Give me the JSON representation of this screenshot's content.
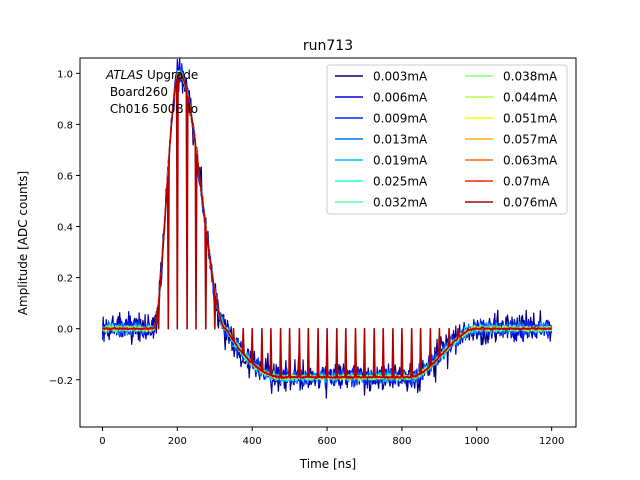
{
  "chart_data": {
    "type": "line",
    "title": "run713",
    "xlabel": "Time [ns]",
    "ylabel": "Amplitude [ADC counts]",
    "xlim": [
      -60,
      1265
    ],
    "ylim": [
      -0.385,
      1.06
    ],
    "xticks": [
      0,
      200,
      400,
      600,
      800,
      1000,
      1200
    ],
    "yticks": [
      -0.2,
      0.0,
      0.2,
      0.4,
      0.6,
      0.8,
      1.0
    ],
    "xtick_labels": [
      "0",
      "200",
      "400",
      "600",
      "800",
      "1000",
      "1200"
    ],
    "ytick_labels": [
      "−0.2",
      "0.0",
      "0.2",
      "0.4",
      "0.6",
      "0.8",
      "1.0"
    ],
    "grid": false,
    "legend_position": "top-right",
    "legend_columns": 2,
    "annotation": {
      "line1_italic": "ATLAS",
      "line1_rest": " Upgrade",
      "line2": " Board260",
      "line3": " Ch016 500B lo"
    },
    "pulse_shape": {
      "baseline": 0.0,
      "rise_start_ns": 135,
      "peak_ns": 205,
      "peak_value": 1.0,
      "zero_cross_ns": 330,
      "undershoot_value": -0.19,
      "undershoot_start_ns": 480,
      "undershoot_end_ns": 820,
      "recovery_end_ns": 1000,
      "sample_period_ns": 25,
      "x_end_ns": 1200
    },
    "series": [
      {
        "name": "0.003mA",
        "color": "#00007f",
        "noise": 0.045
      },
      {
        "name": "0.006mA",
        "color": "#0000d8",
        "noise": 0.032
      },
      {
        "name": "0.009mA",
        "color": "#0028ff",
        "noise": 0.024
      },
      {
        "name": "0.013mA",
        "color": "#0074ff",
        "noise": 0.018
      },
      {
        "name": "0.019mA",
        "color": "#00bcff",
        "noise": 0.013
      },
      {
        "name": "0.025mA",
        "color": "#20ffd6",
        "noise": 0.01
      },
      {
        "name": "0.032mA",
        "color": "#53ffa3",
        "noise": 0.008
      },
      {
        "name": "0.038mA",
        "color": "#86ff70",
        "noise": 0.007
      },
      {
        "name": "0.044mA",
        "color": "#b9ff3d",
        "noise": 0.006
      },
      {
        "name": "0.051mA",
        "color": "#edff0a",
        "noise": 0.005
      },
      {
        "name": "0.057mA",
        "color": "#ffb200",
        "noise": 0.004
      },
      {
        "name": "0.063mA",
        "color": "#ff6c00",
        "noise": 0.004
      },
      {
        "name": "0.07mA",
        "color": "#ff2500",
        "noise": 0.003
      },
      {
        "name": "0.076mA",
        "color": "#b20000",
        "noise": 0.003
      }
    ]
  }
}
